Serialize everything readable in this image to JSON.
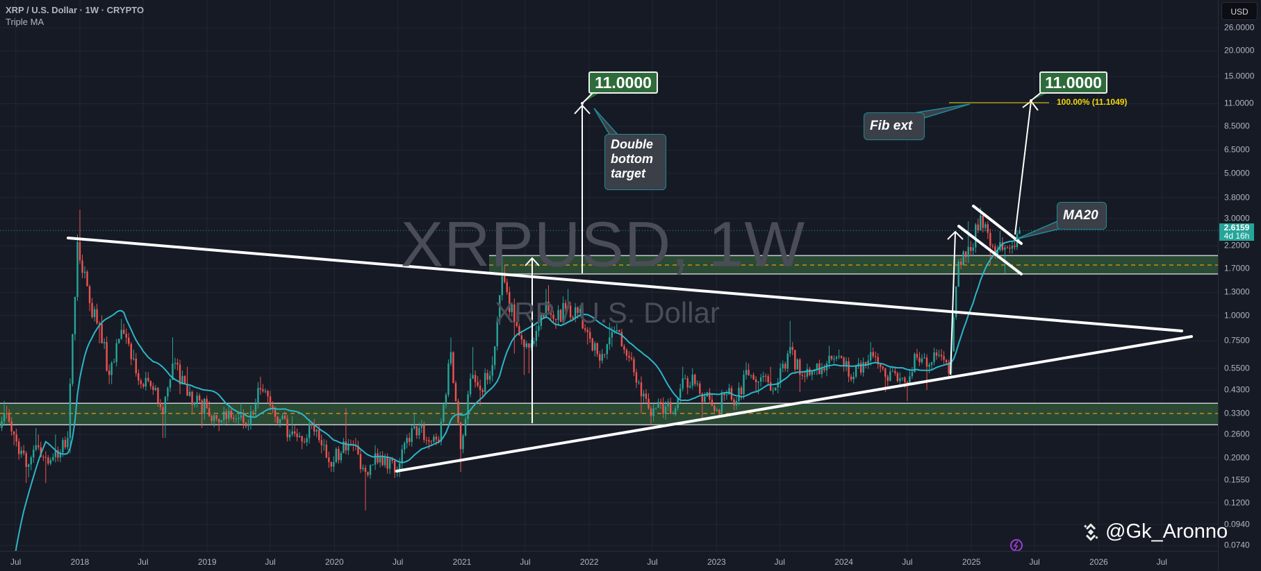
{
  "header": {
    "title": "XRP / U.S. Dollar · 1W · CRYPTO",
    "indicator": "Triple MA"
  },
  "watermark": {
    "symbol": "XRPUSD, 1W",
    "description": "XRP / U.S. Dollar"
  },
  "price_axis": {
    "currency_button": "USD",
    "last_price": "2.6159",
    "countdown": "4d 16h",
    "ticks": [
      "26.0000",
      "20.0000",
      "15.0000",
      "11.0000",
      "8.5000",
      "6.5000",
      "5.0000",
      "3.8000",
      "3.0000",
      "2.2000",
      "1.7000",
      "1.3000",
      "1.0000",
      "0.7500",
      "0.5500",
      "0.4300",
      "0.3300",
      "0.2600",
      "0.2000",
      "0.1550",
      "0.1200",
      "0.0940",
      "0.0740"
    ]
  },
  "time_axis": {
    "ticks": [
      {
        "label": "Jul",
        "date": "2017-07-01"
      },
      {
        "label": "2018",
        "date": "2018-01-01"
      },
      {
        "label": "Jul",
        "date": "2018-07-01"
      },
      {
        "label": "2019",
        "date": "2019-01-01"
      },
      {
        "label": "Jul",
        "date": "2019-07-01"
      },
      {
        "label": "2020",
        "date": "2020-01-01"
      },
      {
        "label": "Jul",
        "date": "2020-07-01"
      },
      {
        "label": "2021",
        "date": "2021-01-01"
      },
      {
        "label": "Jul",
        "date": "2021-07-01"
      },
      {
        "label": "2022",
        "date": "2022-01-01"
      },
      {
        "label": "Jul",
        "date": "2022-07-01"
      },
      {
        "label": "2023",
        "date": "2023-01-01"
      },
      {
        "label": "Jul",
        "date": "2023-07-01"
      },
      {
        "label": "2024",
        "date": "2024-01-01"
      },
      {
        "label": "Jul",
        "date": "2024-07-01"
      },
      {
        "label": "2025",
        "date": "2025-01-01"
      },
      {
        "label": "Jul",
        "date": "2025-07-01"
      },
      {
        "label": "2026",
        "date": "2026-01-01"
      },
      {
        "label": "Jul",
        "date": "2026-07-01"
      }
    ]
  },
  "annotations": {
    "target_1": "11.0000",
    "target_2": "11.0000",
    "double_bottom": "Double bottom target",
    "fib_ext": "Fib ext",
    "fib_level": "100.00% (11.1049)",
    "ma20": "MA20"
  },
  "branding": {
    "handle": "@Gk_Aronno"
  },
  "colors": {
    "up": "#26a69a",
    "down": "#ef5350",
    "ma": "#2bb7c9",
    "zone": "#2b4a33",
    "fib": "#f5d90a"
  },
  "chart_data": {
    "type": "candlestick",
    "title": "XRP / U.S. Dollar · 1W · CRYPTO",
    "scale": "log",
    "ylim": [
      0.074,
      26
    ],
    "xlim": [
      "2017-05-15",
      "2026-10-01"
    ],
    "interval": "1W",
    "grid": true,
    "indicator": {
      "name": "MA20",
      "period": 20
    },
    "last_close": 2.6159,
    "monthly_start": "2017-05",
    "monthly_open": 0.3,
    "monthly_hlc": [
      [
        0.38,
        0.22,
        0.33
      ],
      [
        0.36,
        0.23,
        0.26
      ],
      [
        0.27,
        0.15,
        0.18
      ],
      [
        0.28,
        0.16,
        0.23
      ],
      [
        0.26,
        0.15,
        0.2
      ],
      [
        0.26,
        0.19,
        0.2
      ],
      [
        0.27,
        0.19,
        0.25
      ],
      [
        2.5,
        0.21,
        2.3
      ],
      [
        3.31,
        1.05,
        1.15
      ],
      [
        1.22,
        0.73,
        0.91
      ],
      [
        1.0,
        0.46,
        0.51
      ],
      [
        0.96,
        0.46,
        0.85
      ],
      [
        0.91,
        0.57,
        0.61
      ],
      [
        0.68,
        0.44,
        0.46
      ],
      [
        0.5,
        0.42,
        0.43
      ],
      [
        0.43,
        0.25,
        0.33
      ],
      [
        0.78,
        0.25,
        0.58
      ],
      [
        0.58,
        0.41,
        0.46
      ],
      [
        0.56,
        0.33,
        0.37
      ],
      [
        0.42,
        0.28,
        0.35
      ],
      [
        0.38,
        0.29,
        0.31
      ],
      [
        0.34,
        0.27,
        0.31
      ],
      [
        0.33,
        0.3,
        0.31
      ],
      [
        0.37,
        0.28,
        0.29
      ],
      [
        0.47,
        0.29,
        0.44
      ],
      [
        0.5,
        0.37,
        0.4
      ],
      [
        0.42,
        0.29,
        0.31
      ],
      [
        0.33,
        0.24,
        0.26
      ],
      [
        0.32,
        0.22,
        0.24
      ],
      [
        0.31,
        0.24,
        0.29
      ],
      [
        0.31,
        0.21,
        0.23
      ],
      [
        0.23,
        0.17,
        0.19
      ],
      [
        0.25,
        0.19,
        0.24
      ],
      [
        0.35,
        0.23,
        0.23
      ],
      [
        0.25,
        0.11,
        0.17
      ],
      [
        0.23,
        0.17,
        0.21
      ],
      [
        0.22,
        0.19,
        0.2
      ],
      [
        0.21,
        0.17,
        0.17
      ],
      [
        0.26,
        0.17,
        0.25
      ],
      [
        0.33,
        0.25,
        0.28
      ],
      [
        0.29,
        0.22,
        0.24
      ],
      [
        0.26,
        0.23,
        0.24
      ],
      [
        0.78,
        0.24,
        0.66
      ],
      [
        0.66,
        0.17,
        0.22
      ],
      [
        0.52,
        0.21,
        0.49
      ],
      [
        0.7,
        0.36,
        0.43
      ],
      [
        0.63,
        0.41,
        0.57
      ],
      [
        1.96,
        0.55,
        1.56
      ],
      [
        1.76,
        0.65,
        0.93
      ],
      [
        1.05,
        0.51,
        0.7
      ],
      [
        0.77,
        0.52,
        0.75
      ],
      [
        1.35,
        0.72,
        1.17
      ],
      [
        1.41,
        0.86,
        0.95
      ],
      [
        1.24,
        0.93,
        1.08
      ],
      [
        1.35,
        0.95,
        1.03
      ],
      [
        1.05,
        0.72,
        0.83
      ],
      [
        0.87,
        0.55,
        0.6
      ],
      [
        0.92,
        0.58,
        0.78
      ],
      [
        0.91,
        0.7,
        0.83
      ],
      [
        0.86,
        0.61,
        0.62
      ],
      [
        0.66,
        0.33,
        0.4
      ],
      [
        0.43,
        0.29,
        0.32
      ],
      [
        0.39,
        0.3,
        0.37
      ],
      [
        0.39,
        0.32,
        0.33
      ],
      [
        0.56,
        0.32,
        0.49
      ],
      [
        0.55,
        0.41,
        0.46
      ],
      [
        0.48,
        0.31,
        0.4
      ],
      [
        0.41,
        0.33,
        0.34
      ],
      [
        0.43,
        0.34,
        0.41
      ],
      [
        0.43,
        0.36,
        0.38
      ],
      [
        0.59,
        0.36,
        0.54
      ],
      [
        0.58,
        0.42,
        0.47
      ],
      [
        0.5,
        0.41,
        0.47
      ],
      [
        0.56,
        0.46,
        0.47
      ],
      [
        0.94,
        0.46,
        0.7
      ],
      [
        0.74,
        0.42,
        0.51
      ],
      [
        0.53,
        0.47,
        0.51
      ],
      [
        0.56,
        0.48,
        0.55
      ],
      [
        0.71,
        0.54,
        0.61
      ],
      [
        0.68,
        0.58,
        0.62
      ],
      [
        0.63,
        0.49,
        0.5
      ],
      [
        0.6,
        0.49,
        0.59
      ],
      [
        0.74,
        0.55,
        0.63
      ],
      [
        0.64,
        0.42,
        0.5
      ],
      [
        0.55,
        0.48,
        0.52
      ],
      [
        0.53,
        0.46,
        0.47
      ],
      [
        0.64,
        0.38,
        0.62
      ],
      [
        0.64,
        0.43,
        0.56
      ],
      [
        0.66,
        0.52,
        0.64
      ],
      [
        0.64,
        0.49,
        0.52
      ],
      [
        1.9,
        0.5,
        1.84
      ],
      [
        2.9,
        1.9,
        2.08
      ],
      [
        3.4,
        1.96,
        3.1
      ],
      [
        3.1,
        1.77,
        2.2
      ],
      [
        2.6,
        1.9,
        2.1
      ],
      [
        2.33,
        1.61,
        2.2
      ],
      [
        2.65,
        2.1,
        2.6159
      ]
    ],
    "support_zones": [
      {
        "low": 0.29,
        "high": 0.37,
        "mid": 0.33
      },
      {
        "low": 1.6,
        "high": 1.97,
        "mid": 1.77
      }
    ],
    "trendlines": [
      {
        "name": "descending-resistance",
        "from": [
          "2018-01-01",
          2.55
        ],
        "to": [
          "2026-09-01",
          0.87
        ]
      },
      {
        "name": "ascending-support",
        "from": [
          "2020-06-15",
          0.171
        ],
        "to": [
          "2026-09-25",
          0.8
        ]
      }
    ],
    "fib_extension": {
      "level": "100.00%",
      "price": 11.1049
    }
  }
}
